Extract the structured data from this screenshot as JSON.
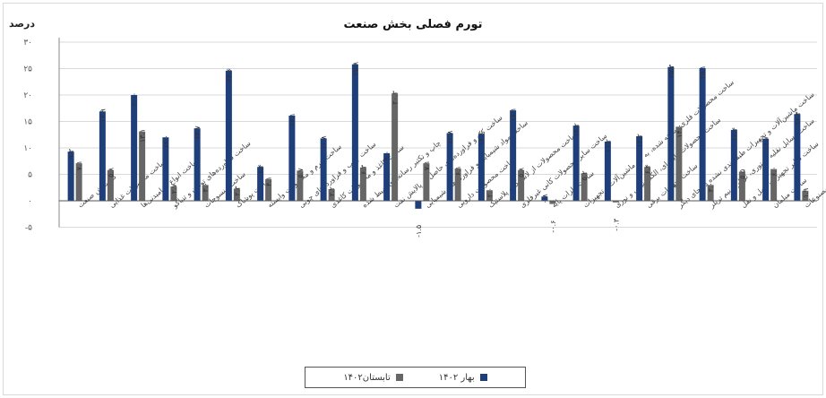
{
  "chart_data": {
    "type": "bar",
    "title": "تورم فصلی بخش صنعت",
    "ylabel": "درصد",
    "xlabel": "",
    "ylim": [
      -5,
      30
    ],
    "yticks": [
      30,
      25,
      20,
      15,
      10,
      5,
      0,
      -5
    ],
    "ytick_labels": [
      "۳۰",
      "۲۵",
      "۲۰",
      "۱۵",
      "۱۰",
      "۵",
      "۰",
      "-۵"
    ],
    "grid": true,
    "legend_position": "bottom",
    "categories": [
      "کل بخش صنعت",
      "ساخت محصولات غذایی",
      "ساخت انواع آشامیدنی‌ها",
      "ساخت فراورده‌های توتون و تنباکو",
      "ساخت منسوجات",
      "ساخت پوشاک",
      "ساخت چرم و محصولات وابسته",
      "ساخت چوب و فراورده‌های چوبی",
      "ساخت کاغذ و محصولات کاغذی",
      "چاپ و تکثیر رسانه‌های ضبط شده",
      "ساخت کک و فراورده‌های حاصل از پالایش نفت",
      "ساخت مواد شیمیایی و فراورده‌های شیمیایی",
      "ساخت محصولات دارویی",
      "ساخت محصولات از لاستیک و پلاستیک",
      "ساخت سایر محصولات کانی غیرفلزی",
      "ساخت فلزات پایه",
      "ساخت محصولات فلزی ساخته شده، به جز ماشین‌آلات و تجهیزات",
      "ساخت محصولات رایانه‌ای، الکترونیکی و نوری",
      "ساخت تجهیزات برقی",
      "ساخت ماشین‌آلات و تجهیزات طبقه‌بندی نشده در جای دیگر",
      "ساخت وسایل نقلیه موتوری، تریلر و نیم تریلر",
      "ساخت سایر تجهیزات حمل و نقل",
      "ساخت مبلمان",
      "ساخت سایر مصنوعات"
    ],
    "series": [
      {
        "name": "بهار ۱۴۰۲",
        "color": "#1f3f7a",
        "values": [
          9.3,
          16.9,
          20.0,
          12.0,
          13.7,
          24.6,
          6.4,
          16.1,
          11.8,
          25.8,
          9.0,
          -1.5,
          12.8,
          12.6,
          17.1,
          0.8,
          14.2,
          11.2,
          12.2,
          25.3,
          25.1,
          13.4,
          11.7,
          16.4
        ],
        "labels": [
          "۹.۳",
          "۱۶.۹",
          "۲۰.۰",
          "۱۲.۰",
          "۱۳.۷",
          "۲۴.۶",
          "۶.۴",
          "۱۶.۱",
          "۱۱.۸",
          "۲۵.۸",
          "۹.۰",
          "-۱.۵",
          "۱۲.۸",
          "۱۲.۶",
          "۱۷.۱",
          "۰.۸",
          "۱۴.۲",
          "۱۱.۲",
          "۱۲.۲",
          "۲۵.۳",
          "۲۵.۱",
          "۱۳.۴",
          "۱۱.۷",
          "۱۶.۴"
        ]
      },
      {
        "name": "تابستان۱۴۰۲",
        "color": "#666666",
        "values": [
          7.1,
          5.8,
          13.1,
          2.7,
          3.0,
          2.3,
          4.1,
          5.7,
          2.2,
          6.3,
          20.3,
          7.1,
          6.1,
          2.0,
          5.8,
          -0.6,
          5.2,
          -0.3,
          6.4,
          14.0,
          3.0,
          5.5,
          6.0,
          1.9
        ],
        "labels": [
          "۷.۱",
          "۵.۸",
          "۱۳.۱",
          "۲.۷",
          "۳.۰",
          "۲.۳",
          "۴.۱",
          "۵.۷",
          "۲.۲",
          "۶.۳",
          "۲۰.۳",
          "۷.۱",
          "۶.۱",
          "۲.۰",
          "۵.۸",
          "-۰.۶",
          "۵.۲",
          "-۰.۳",
          "۶.۴",
          "۱۴.۰",
          "۳.۰",
          "۵.۵",
          "۶.۰",
          "۱.۹"
        ]
      }
    ]
  },
  "legend": {
    "spring_label": "بهار ۱۴۰۲",
    "summer_label": "تابستان۱۴۰۲"
  }
}
